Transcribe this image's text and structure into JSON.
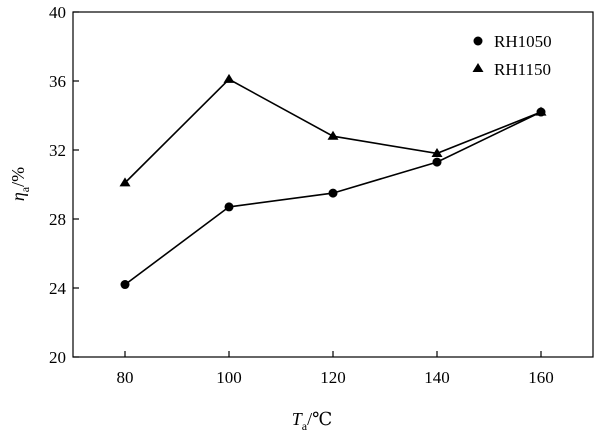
{
  "chart_data": {
    "type": "line",
    "x": [
      80,
      100,
      120,
      140,
      160
    ],
    "xlim": [
      70,
      170
    ],
    "ylim": [
      20,
      40
    ],
    "xticks": [
      "80",
      "100",
      "120",
      "140",
      "160"
    ],
    "yticks": [
      "20",
      "24",
      "28",
      "32",
      "36",
      "40"
    ],
    "ytick_values": [
      20,
      24,
      28,
      32,
      36,
      40
    ],
    "xtick_values": [
      80,
      100,
      120,
      140,
      160
    ],
    "xlabel": {
      "symbol": "T",
      "subscript": "a",
      "unit": "/℃"
    },
    "ylabel": {
      "symbol": "η",
      "subscript": "a",
      "unit": "/%"
    },
    "grid": false,
    "legend_position": "top-right",
    "series": [
      {
        "name": "RH1050",
        "marker": "circle",
        "color": "#000000",
        "values": [
          24.2,
          28.7,
          29.5,
          31.3,
          34.2
        ]
      },
      {
        "name": "RH1150",
        "marker": "triangle",
        "color": "#000000",
        "values": [
          30.1,
          36.1,
          32.8,
          31.8,
          34.2
        ]
      }
    ]
  }
}
